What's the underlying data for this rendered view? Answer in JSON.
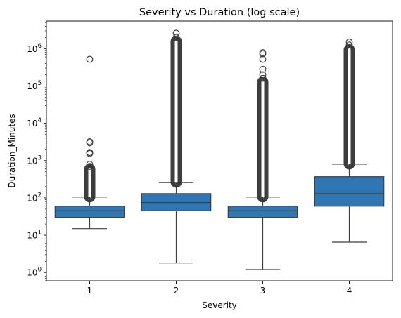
{
  "chart_data": {
    "type": "box",
    "title": "Severity vs Duration (log scale)",
    "xlabel": "Severity",
    "ylabel": "Duration_Minutes",
    "y_scale": "log",
    "ylim": [
      0.6,
      5500000
    ],
    "y_ticks": [
      1,
      10,
      100,
      1000,
      10000,
      100000,
      1000000
    ],
    "y_tick_labels": [
      {
        "base": "10",
        "exp": "0"
      },
      {
        "base": "10",
        "exp": "1"
      },
      {
        "base": "10",
        "exp": "2"
      },
      {
        "base": "10",
        "exp": "3"
      },
      {
        "base": "10",
        "exp": "4"
      },
      {
        "base": "10",
        "exp": "5"
      },
      {
        "base": "10",
        "exp": "6"
      }
    ],
    "categories": [
      "1",
      "2",
      "3",
      "4"
    ],
    "box_color": "#2f77b4",
    "edge_color": "#3d3d3d",
    "boxes": [
      {
        "category": "1",
        "whisker_low": 15,
        "q1": 30,
        "median": 45,
        "q3": 60,
        "whisker_high": 105,
        "outlier_band": [
          105,
          600
        ],
        "outliers": [
          700,
          800,
          1550,
          1650,
          3000,
          3200,
          520000
        ]
      },
      {
        "category": "2",
        "whisker_low": 1.8,
        "q1": 45,
        "median": 75,
        "q3": 130,
        "whisker_high": 260,
        "outlier_band": [
          260,
          1600000
        ],
        "outliers": [
          2000000,
          2600000
        ]
      },
      {
        "category": "3",
        "whisker_low": 1.2,
        "q1": 30,
        "median": 45,
        "q3": 60,
        "whisker_high": 105,
        "outlier_band": [
          105,
          130000
        ],
        "outliers": [
          160000,
          200000,
          280000,
          520000,
          730000,
          780000
        ]
      },
      {
        "category": "4",
        "whisker_low": 6.5,
        "q1": 60,
        "median": 130,
        "q3": 370,
        "whisker_high": 800,
        "outlier_band": [
          800,
          950000
        ],
        "outliers": [
          1250000,
          1500000
        ]
      }
    ]
  }
}
